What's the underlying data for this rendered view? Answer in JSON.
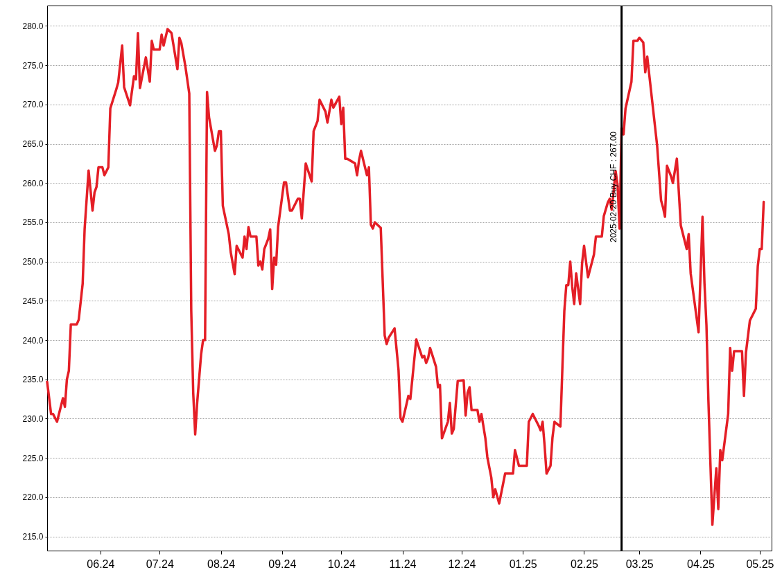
{
  "chart_data": {
    "type": "line",
    "x": [
      "2024-05-05",
      "2024-05-07",
      "2024-05-08",
      "2024-05-10",
      "2024-05-13",
      "2024-05-14",
      "2024-05-15",
      "2024-05-16",
      "2024-05-17",
      "2024-05-20",
      "2024-05-21",
      "2024-05-23",
      "2024-05-24",
      "2024-05-26",
      "2024-05-28",
      "2024-05-29",
      "2024-05-30",
      "2024-05-31",
      "2024-06-02",
      "2024-06-03",
      "2024-06-05",
      "2024-06-06",
      "2024-06-09",
      "2024-06-10",
      "2024-06-12",
      "2024-06-13",
      "2024-06-16",
      "2024-06-18",
      "2024-06-19",
      "2024-06-20",
      "2024-06-21",
      "2024-06-24",
      "2024-06-26",
      "2024-06-27",
      "2024-06-28",
      "2024-07-01",
      "2024-07-02",
      "2024-07-03",
      "2024-07-05",
      "2024-07-07",
      "2024-07-10",
      "2024-07-11",
      "2024-07-12",
      "2024-07-14",
      "2024-07-16",
      "2024-07-17",
      "2024-07-18",
      "2024-07-19",
      "2024-07-20",
      "2024-07-22",
      "2024-07-23",
      "2024-07-24",
      "2024-07-25",
      "2024-07-26",
      "2024-07-29",
      "2024-07-30",
      "2024-07-31",
      "2024-08-01",
      "2024-08-02",
      "2024-08-05",
      "2024-08-06",
      "2024-08-08",
      "2024-08-09",
      "2024-08-12",
      "2024-08-13",
      "2024-08-14",
      "2024-08-15",
      "2024-08-16",
      "2024-08-19",
      "2024-08-20",
      "2024-08-21",
      "2024-08-22",
      "2024-08-23",
      "2024-08-25",
      "2024-08-26",
      "2024-08-27",
      "2024-08-28",
      "2024-08-29",
      "2024-08-30",
      "2024-09-02",
      "2024-09-03",
      "2024-09-05",
      "2024-09-06",
      "2024-09-09",
      "2024-09-10",
      "2024-09-11",
      "2024-09-13",
      "2024-09-16",
      "2024-09-17",
      "2024-09-19",
      "2024-09-20",
      "2024-09-23",
      "2024-09-24",
      "2024-09-26",
      "2024-09-27",
      "2024-09-30",
      "2024-10-01",
      "2024-10-02",
      "2024-10-03",
      "2024-10-04",
      "2024-10-08",
      "2024-10-09",
      "2024-10-10",
      "2024-10-11",
      "2024-10-14",
      "2024-10-15",
      "2024-10-16",
      "2024-10-17",
      "2024-10-18",
      "2024-10-21",
      "2024-10-23",
      "2024-10-24",
      "2024-10-25",
      "2024-10-28",
      "2024-10-30",
      "2024-10-31",
      "2024-11-01",
      "2024-11-04",
      "2024-11-05",
      "2024-11-08",
      "2024-11-11",
      "2024-11-12",
      "2024-11-13",
      "2024-11-14",
      "2024-11-15",
      "2024-11-18",
      "2024-11-19",
      "2024-11-20",
      "2024-11-21",
      "2024-11-24",
      "2024-11-25",
      "2024-11-26",
      "2024-11-27",
      "2024-11-29",
      "2024-12-02",
      "2024-12-03",
      "2024-12-04",
      "2024-12-05",
      "2024-12-06",
      "2024-12-09",
      "2024-12-10",
      "2024-12-11",
      "2024-12-13",
      "2024-12-14",
      "2024-12-16",
      "2024-12-17",
      "2024-12-18",
      "2024-12-20",
      "2024-12-23",
      "2024-12-27",
      "2024-12-28",
      "2024-12-30",
      "2025-01-03",
      "2025-01-04",
      "2025-01-06",
      "2025-01-09",
      "2025-01-10",
      "2025-01-11",
      "2025-01-12",
      "2025-01-13",
      "2025-01-15",
      "2025-01-16",
      "2025-01-17",
      "2025-01-20",
      "2025-01-22",
      "2025-01-23",
      "2025-01-24",
      "2025-01-25",
      "2025-01-26",
      "2025-01-27",
      "2025-01-28",
      "2025-01-30",
      "2025-01-31",
      "2025-02-01",
      "2025-02-03",
      "2025-02-06",
      "2025-02-07",
      "2025-02-08",
      "2025-02-10",
      "2025-02-11",
      "2025-02-13",
      "2025-02-14",
      "2025-02-15",
      "2025-02-17",
      "2025-02-18",
      "2025-02-19",
      "2025-02-20",
      "2025-02-21",
      "2025-02-22",
      "2025-02-25",
      "2025-02-26",
      "2025-02-28",
      "2025-03-01",
      "2025-03-03",
      "2025-03-04",
      "2025-03-05",
      "2025-03-10",
      "2025-03-12",
      "2025-03-13",
      "2025-03-14",
      "2025-03-15",
      "2025-03-17",
      "2025-03-18",
      "2025-03-20",
      "2025-03-22",
      "2025-03-25",
      "2025-03-26",
      "2025-03-27",
      "2025-03-31",
      "2025-04-02",
      "2025-04-03",
      "2025-04-04",
      "2025-04-05",
      "2025-04-07",
      "2025-04-09",
      "2025-04-10",
      "2025-04-11",
      "2025-04-12",
      "2025-04-15",
      "2025-04-16",
      "2025-04-17",
      "2025-04-18",
      "2025-04-22",
      "2025-04-23",
      "2025-04-24",
      "2025-04-26",
      "2025-04-29",
      "2025-04-30",
      "2025-05-01",
      "2025-05-02",
      "2025-05-03"
    ],
    "series": [
      {
        "color": "#e41e26",
        "values": [
          234.7,
          230.6,
          230.6,
          229.6,
          232.6,
          231.5,
          235.0,
          236.1,
          242.0,
          242.0,
          242.6,
          247.2,
          254.2,
          261.6,
          256.5,
          258.8,
          259.5,
          262.0,
          262.0,
          261.0,
          262.0,
          269.5,
          271.9,
          272.8,
          277.5,
          272.2,
          269.9,
          273.6,
          273.2,
          279.1,
          272.1,
          276.0,
          272.9,
          278.1,
          277.0,
          277.0,
          278.9,
          277.5,
          279.6,
          279.1,
          274.5,
          278.5,
          277.8,
          274.9,
          271.4,
          243.8,
          233.3,
          228.0,
          232.0,
          238.2,
          240.0,
          240.0,
          271.6,
          268.4,
          264.1,
          264.8,
          266.6,
          266.6,
          257.1,
          253.5,
          251.2,
          248.4,
          252.0,
          250.5,
          253.2,
          251.6,
          254.4,
          253.2,
          253.2,
          249.5,
          250.0,
          249.0,
          251.6,
          252.9,
          254.1,
          246.5,
          250.5,
          249.6,
          254.4,
          260.1,
          260.1,
          256.5,
          256.5,
          258.0,
          258.0,
          255.5,
          262.5,
          260.2,
          266.6,
          267.9,
          270.6,
          269.1,
          267.7,
          270.6,
          269.6,
          271.0,
          267.5,
          269.6,
          263.1,
          263.1,
          262.5,
          261.0,
          262.9,
          264.1,
          261.0,
          262.0,
          254.7,
          254.2,
          255.0,
          254.3,
          240.6,
          239.5,
          240.3,
          241.5,
          236.2,
          230.1,
          229.6,
          232.9,
          232.5,
          240.1,
          237.8,
          238.0,
          237.1,
          237.7,
          239.0,
          236.6,
          234.0,
          234.3,
          227.5,
          229.6,
          232.0,
          228.1,
          228.7,
          234.8,
          234.9,
          230.4,
          233.3,
          234.0,
          231.1,
          231.1,
          229.6,
          230.6,
          227.5,
          225.1,
          222.5,
          220.0,
          221.0,
          219.2,
          223.0,
          223.0,
          226.0,
          224.0,
          224.0,
          229.6,
          230.6,
          229.1,
          228.5,
          229.6,
          226.6,
          223.0,
          224.0,
          227.6,
          229.6,
          229.0,
          243.7,
          247.0,
          247.0,
          250.0,
          246.8,
          244.6,
          248.5,
          244.6,
          249.8,
          252.0,
          248.0,
          250.9,
          253.2,
          253.2,
          253.2,
          255.8,
          257.5,
          258.0,
          256.6,
          261.5,
          259.7,
          254.2,
          267.0,
          266.2,
          269.5,
          272.9,
          278.1,
          278.1,
          278.5,
          277.9,
          274.1,
          276.1,
          264.8,
          257.8,
          256.9,
          255.7,
          262.2,
          260.9,
          260.0,
          263.1,
          254.6,
          251.6,
          253.5,
          248.5,
          241.0,
          255.7,
          247.2,
          241.9,
          232.2,
          216.5,
          223.7,
          218.5,
          226.0,
          224.7,
          230.6,
          239.0,
          236.1,
          238.6,
          238.6,
          232.9,
          238.4,
          242.5,
          244.0,
          249.4,
          251.6,
          251.6,
          257.6
        ]
      }
    ],
    "xlim": [
      "2024-05-05",
      "2025-05-07"
    ],
    "xticks": [
      {
        "value": "2024-06-01",
        "label": "06.24"
      },
      {
        "value": "2024-07-01",
        "label": "07.24"
      },
      {
        "value": "2024-08-01",
        "label": "08.24"
      },
      {
        "value": "2024-09-01",
        "label": "09.24"
      },
      {
        "value": "2024-10-01",
        "label": "10.24"
      },
      {
        "value": "2024-11-01",
        "label": "11.24"
      },
      {
        "value": "2024-12-01",
        "label": "12.24"
      },
      {
        "value": "2025-01-01",
        "label": "01.25"
      },
      {
        "value": "2025-02-01",
        "label": "02.25"
      },
      {
        "value": "2025-03-01",
        "label": "03.25"
      },
      {
        "value": "2025-04-01",
        "label": "04.25"
      },
      {
        "value": "2025-05-01",
        "label": "05.25"
      }
    ],
    "ylim": [
      213.2,
      282.6
    ],
    "yticks": [
      {
        "value": 215,
        "label": "215.0"
      },
      {
        "value": 220,
        "label": "220.0"
      },
      {
        "value": 225,
        "label": "225.0"
      },
      {
        "value": 230,
        "label": "230.0"
      },
      {
        "value": 235,
        "label": "235.0"
      },
      {
        "value": 240,
        "label": "240.0"
      },
      {
        "value": 245,
        "label": "245.0"
      },
      {
        "value": 250,
        "label": "250.0"
      },
      {
        "value": 255,
        "label": "255.0"
      },
      {
        "value": 260,
        "label": "260.0"
      },
      {
        "value": 265,
        "label": "265.0"
      },
      {
        "value": 270,
        "label": "270.0"
      },
      {
        "value": 275,
        "label": "275.0"
      },
      {
        "value": 280,
        "label": "280.0"
      }
    ],
    "ref_lines": [
      {
        "axis": "x",
        "value": "2025-02-20",
        "label": "2025-02-20 Buy CHF : 267.00",
        "color": "#000000"
      }
    ],
    "grid": "y"
  }
}
